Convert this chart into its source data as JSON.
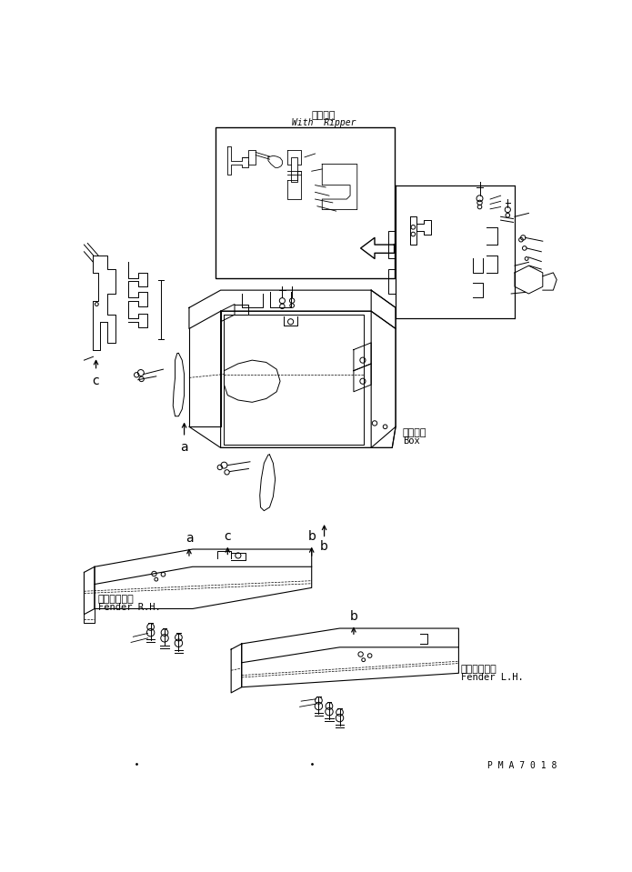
{
  "bg_color": "#ffffff",
  "title_jp": "リッパ付",
  "title_en": "With  Ripper",
  "label_box_jp": "ボックス",
  "label_box_en": "Box",
  "label_fender_rh_jp": "フェンダ右側",
  "label_fender_rh_en": "Fender R.H.",
  "label_fender_lh_jp": "フェンダ左側",
  "label_fender_lh_en": "Fender L.H.",
  "part_id": "P M A 7 0 1 8",
  "line_color": "#000000",
  "line_width": 0.7
}
